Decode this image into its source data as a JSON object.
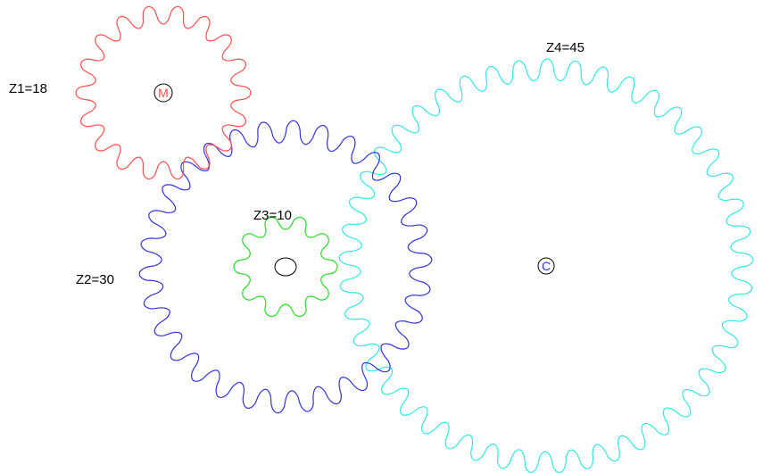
{
  "gears": [
    {
      "id": "z1",
      "label": "Z1=18",
      "teeth": 18,
      "color": "#ff4d4d",
      "hub_letter": "M",
      "hub_letter_color": "#ff4d4d"
    },
    {
      "id": "z2",
      "label": "Z2=30",
      "teeth": 30,
      "color": "#3333dd",
      "hub_letter": "",
      "hub_letter_color": "#000000"
    },
    {
      "id": "z3",
      "label": "Z3=10",
      "teeth": 10,
      "color": "#22dd22",
      "hub_letter": "",
      "hub_letter_color": "#000000"
    },
    {
      "id": "z4",
      "label": "Z4=45",
      "teeth": 45,
      "color": "#33e6e6",
      "hub_letter": "C",
      "hub_letter_color": "#3333dd"
    }
  ]
}
